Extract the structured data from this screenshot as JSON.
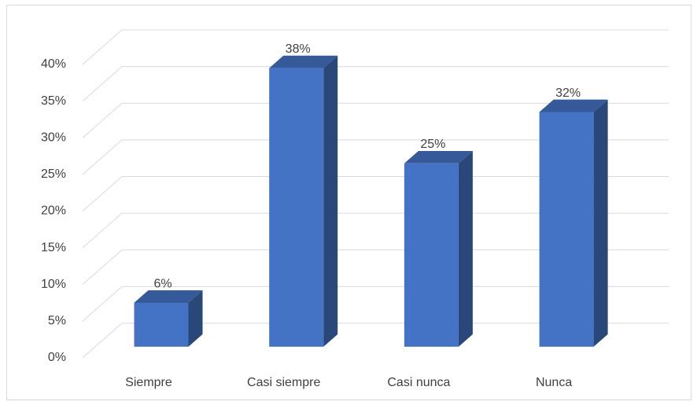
{
  "chart_data": {
    "type": "bar3d",
    "categories": [
      "Siempre",
      "Casi siempre",
      "Casi nunca",
      "Nunca"
    ],
    "values": [
      6,
      38,
      25,
      32
    ],
    "value_labels": [
      "6%",
      "38%",
      "25%",
      "32%"
    ],
    "color": "#4472c4",
    "ylim": [
      0,
      40
    ],
    "yticks": [
      {
        "value": 0,
        "label": "0%"
      },
      {
        "value": 5,
        "label": "5%"
      },
      {
        "value": 10,
        "label": "10%"
      },
      {
        "value": 15,
        "label": "15%"
      },
      {
        "value": 20,
        "label": "20%"
      },
      {
        "value": 25,
        "label": "25%"
      },
      {
        "value": 30,
        "label": "30%"
      },
      {
        "value": 35,
        "label": "35%"
      },
      {
        "value": 40,
        "label": "40%"
      }
    ],
    "grid": true
  }
}
